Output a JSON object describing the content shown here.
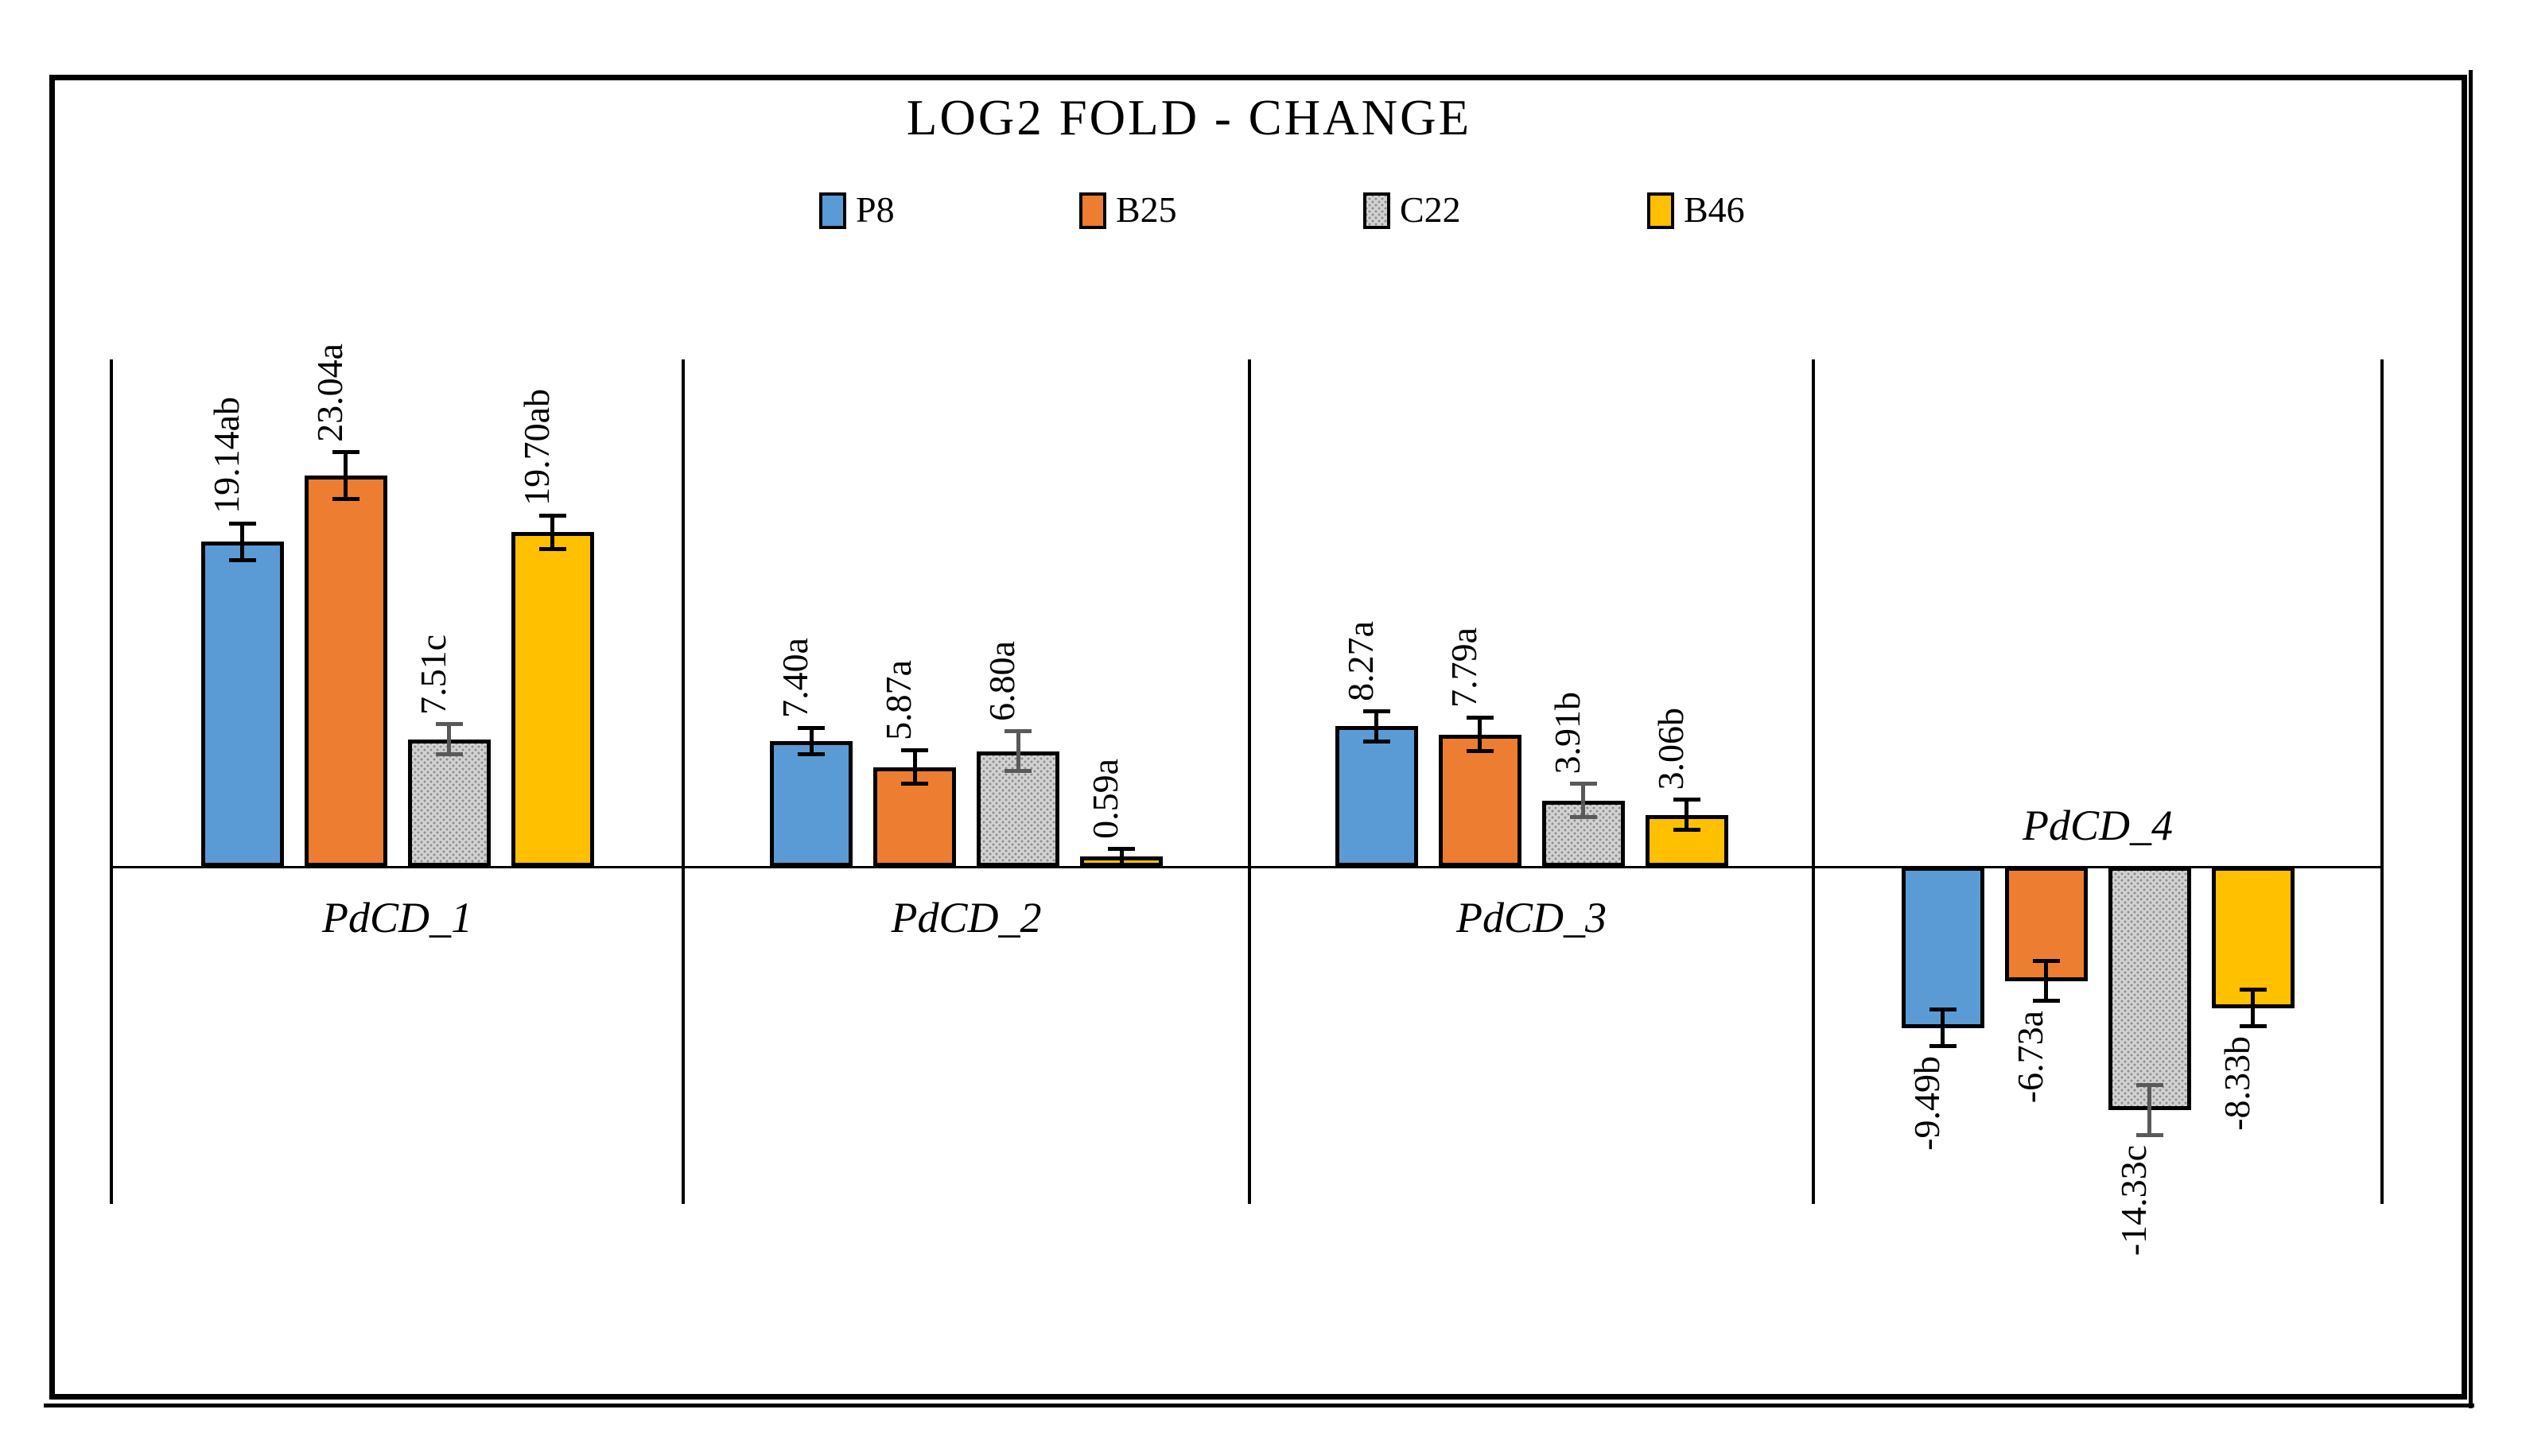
{
  "title": {
    "text": "LOG2 FOLD - CHANGE"
  },
  "chart_data": {
    "type": "bar",
    "title": "LOG2 FOLD - CHANGE",
    "categories": [
      "PdCD_1",
      "PdCD_2",
      "PdCD_3",
      "PdCD_4"
    ],
    "series": [
      {
        "name": "P8",
        "color": "#5B9BD5",
        "pattern": "solid",
        "values": [
          19.14,
          7.4,
          8.27,
          -9.49
        ],
        "labels": [
          "19.14ab",
          "7.40a",
          "8.27a",
          "-9.49b"
        ],
        "errors": [
          1.1,
          0.8,
          0.9,
          1.1
        ]
      },
      {
        "name": "B25",
        "color": "#ED7D31",
        "pattern": "solid",
        "values": [
          23.04,
          5.87,
          7.79,
          -6.73
        ],
        "labels": [
          "23.04a",
          "5.87a",
          "7.79a",
          "-6.73a"
        ],
        "errors": [
          1.4,
          1.0,
          1.0,
          1.2
        ]
      },
      {
        "name": "C22",
        "color": "#C9C9C9",
        "pattern": "dotted",
        "values": [
          7.51,
          6.8,
          3.91,
          -14.33
        ],
        "labels": [
          "7.51c",
          "6.80a",
          "3.91b",
          "-14.33c"
        ],
        "errors": [
          0.9,
          1.2,
          1.0,
          1.5
        ]
      },
      {
        "name": "B46",
        "color": "#FFC000",
        "pattern": "solid",
        "values": [
          19.7,
          0.59,
          3.06,
          -8.33
        ],
        "labels": [
          "19.70ab",
          "0.59a",
          "3.06b",
          "-8.33b"
        ],
        "errors": [
          1.0,
          0.5,
          0.9,
          1.1
        ]
      }
    ],
    "ylim": [
      -20,
      30
    ],
    "gridlines": false,
    "legend_position": "top",
    "axis_color": "#000000",
    "bar_outline_color": "#000000",
    "error_bar_color": "#000000",
    "error_bar_color_dotted_series": "#595959",
    "category_label_position": [
      "below-axis",
      "below-axis",
      "below-axis",
      "above-axis"
    ]
  }
}
